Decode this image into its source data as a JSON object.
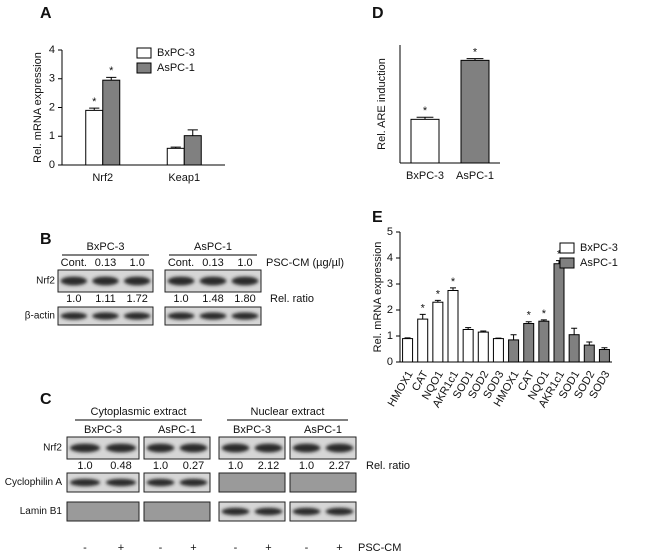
{
  "panel_labels": [
    "A",
    "B",
    "C",
    "D",
    "E"
  ],
  "chart_data": [
    {
      "type": "bar",
      "ylabel": "Rel. mRNA expression",
      "categories": [
        "Nrf2",
        "Keap1"
      ],
      "series": [
        {
          "name": "BxPC-3",
          "color": "#ffffff",
          "values": [
            1.9,
            0.58
          ],
          "errors": [
            0.08,
            0.04
          ],
          "significance": [
            "*",
            null
          ]
        },
        {
          "name": "AsPC-1",
          "color": "#808080",
          "values": [
            2.95,
            1.02
          ],
          "errors": [
            0.1,
            0.2
          ],
          "significance": [
            "*",
            null
          ]
        }
      ],
      "ylim": [
        0,
        4
      ],
      "yticks": [
        0,
        1,
        2,
        3,
        4
      ]
    },
    {
      "type": "bar",
      "ylabel": "Rel. ARE induction",
      "categories": [
        "BxPC-3",
        "AsPC-1"
      ],
      "values": [
        1.48,
        3.48
      ],
      "errors": [
        0.07,
        0.06
      ],
      "colors": [
        "#ffffff",
        "#808080"
      ],
      "significance": [
        "*",
        "*"
      ],
      "ylim": [
        0,
        4
      ]
    },
    {
      "type": "bar",
      "ylabel": "Rel. mRNA expression",
      "categories": [
        "HMOX1",
        "CAT",
        "NQO1",
        "AKR1c1",
        "SOD1",
        "SOD2",
        "SOD3",
        "HMOX1",
        "CAT",
        "NQO1",
        "AKR1c1",
        "SOD1",
        "SOD2",
        "SOD3"
      ],
      "series": [
        {
          "name": "BxPC-3",
          "color": "#ffffff",
          "values": [
            0.9,
            1.65,
            2.3,
            2.75,
            1.25,
            1.15,
            0.9,
            null,
            null,
            null,
            null,
            null,
            null,
            null
          ],
          "errors": [
            0.03,
            0.18,
            0.07,
            0.1,
            0.07,
            0.04,
            0.02,
            null,
            null,
            null,
            null,
            null,
            null,
            null
          ],
          "significance": [
            null,
            "*",
            "*",
            "*",
            null,
            null,
            null,
            null,
            null,
            null,
            null,
            null,
            null,
            null
          ]
        },
        {
          "name": "AsPC-1",
          "color": "#808080",
          "values": [
            null,
            null,
            null,
            null,
            null,
            null,
            null,
            0.85,
            1.48,
            1.57,
            3.78,
            1.05,
            0.65,
            0.48
          ],
          "errors": [
            null,
            null,
            null,
            null,
            null,
            null,
            null,
            0.2,
            0.07,
            0.05,
            0.12,
            0.25,
            0.12,
            0.07
          ],
          "significance": [
            null,
            null,
            null,
            null,
            null,
            null,
            null,
            null,
            "*",
            "*",
            "*",
            null,
            null,
            null
          ]
        }
      ],
      "ylim": [
        0,
        5
      ],
      "yticks": [
        0,
        1,
        2,
        3,
        4,
        5
      ]
    }
  ],
  "blots": {
    "B": {
      "groups": [
        "BxPC-3",
        "AsPC-1"
      ],
      "lanes": [
        [
          "Cont.",
          "0.13",
          "1.0"
        ],
        [
          "Cont.",
          "0.13",
          "1.0"
        ]
      ],
      "treatment": "PSC-CM (µg/µl)",
      "rows": [
        "Nrf2",
        "β-actin"
      ],
      "ratios": [
        [
          "1.0",
          "1.11",
          "1.72"
        ],
        [
          "1.0",
          "1.48",
          "1.80"
        ]
      ],
      "ratio_label": "Rel. ratio"
    },
    "C": {
      "sections": [
        "Cytoplasmic extract",
        "Nuclear extract"
      ],
      "groups": [
        "BxPC-3",
        "AsPC-1",
        "BxPC-3",
        "AsPC-1"
      ],
      "rows": [
        "Nrf2",
        "Cyclophilin A",
        "Lamin B1"
      ],
      "ratios": [
        [
          "1.0",
          "0.48"
        ],
        [
          "1.0",
          "0.27"
        ],
        [
          "1.0",
          "2.12"
        ],
        [
          "1.0",
          "2.27"
        ]
      ],
      "ratio_label": "Rel. ratio",
      "lanes": [
        [
          "-",
          "+"
        ],
        [
          "-",
          "+"
        ],
        [
          "-",
          "+"
        ],
        [
          "-",
          "+"
        ]
      ],
      "treatment": "PSC-CM"
    }
  }
}
